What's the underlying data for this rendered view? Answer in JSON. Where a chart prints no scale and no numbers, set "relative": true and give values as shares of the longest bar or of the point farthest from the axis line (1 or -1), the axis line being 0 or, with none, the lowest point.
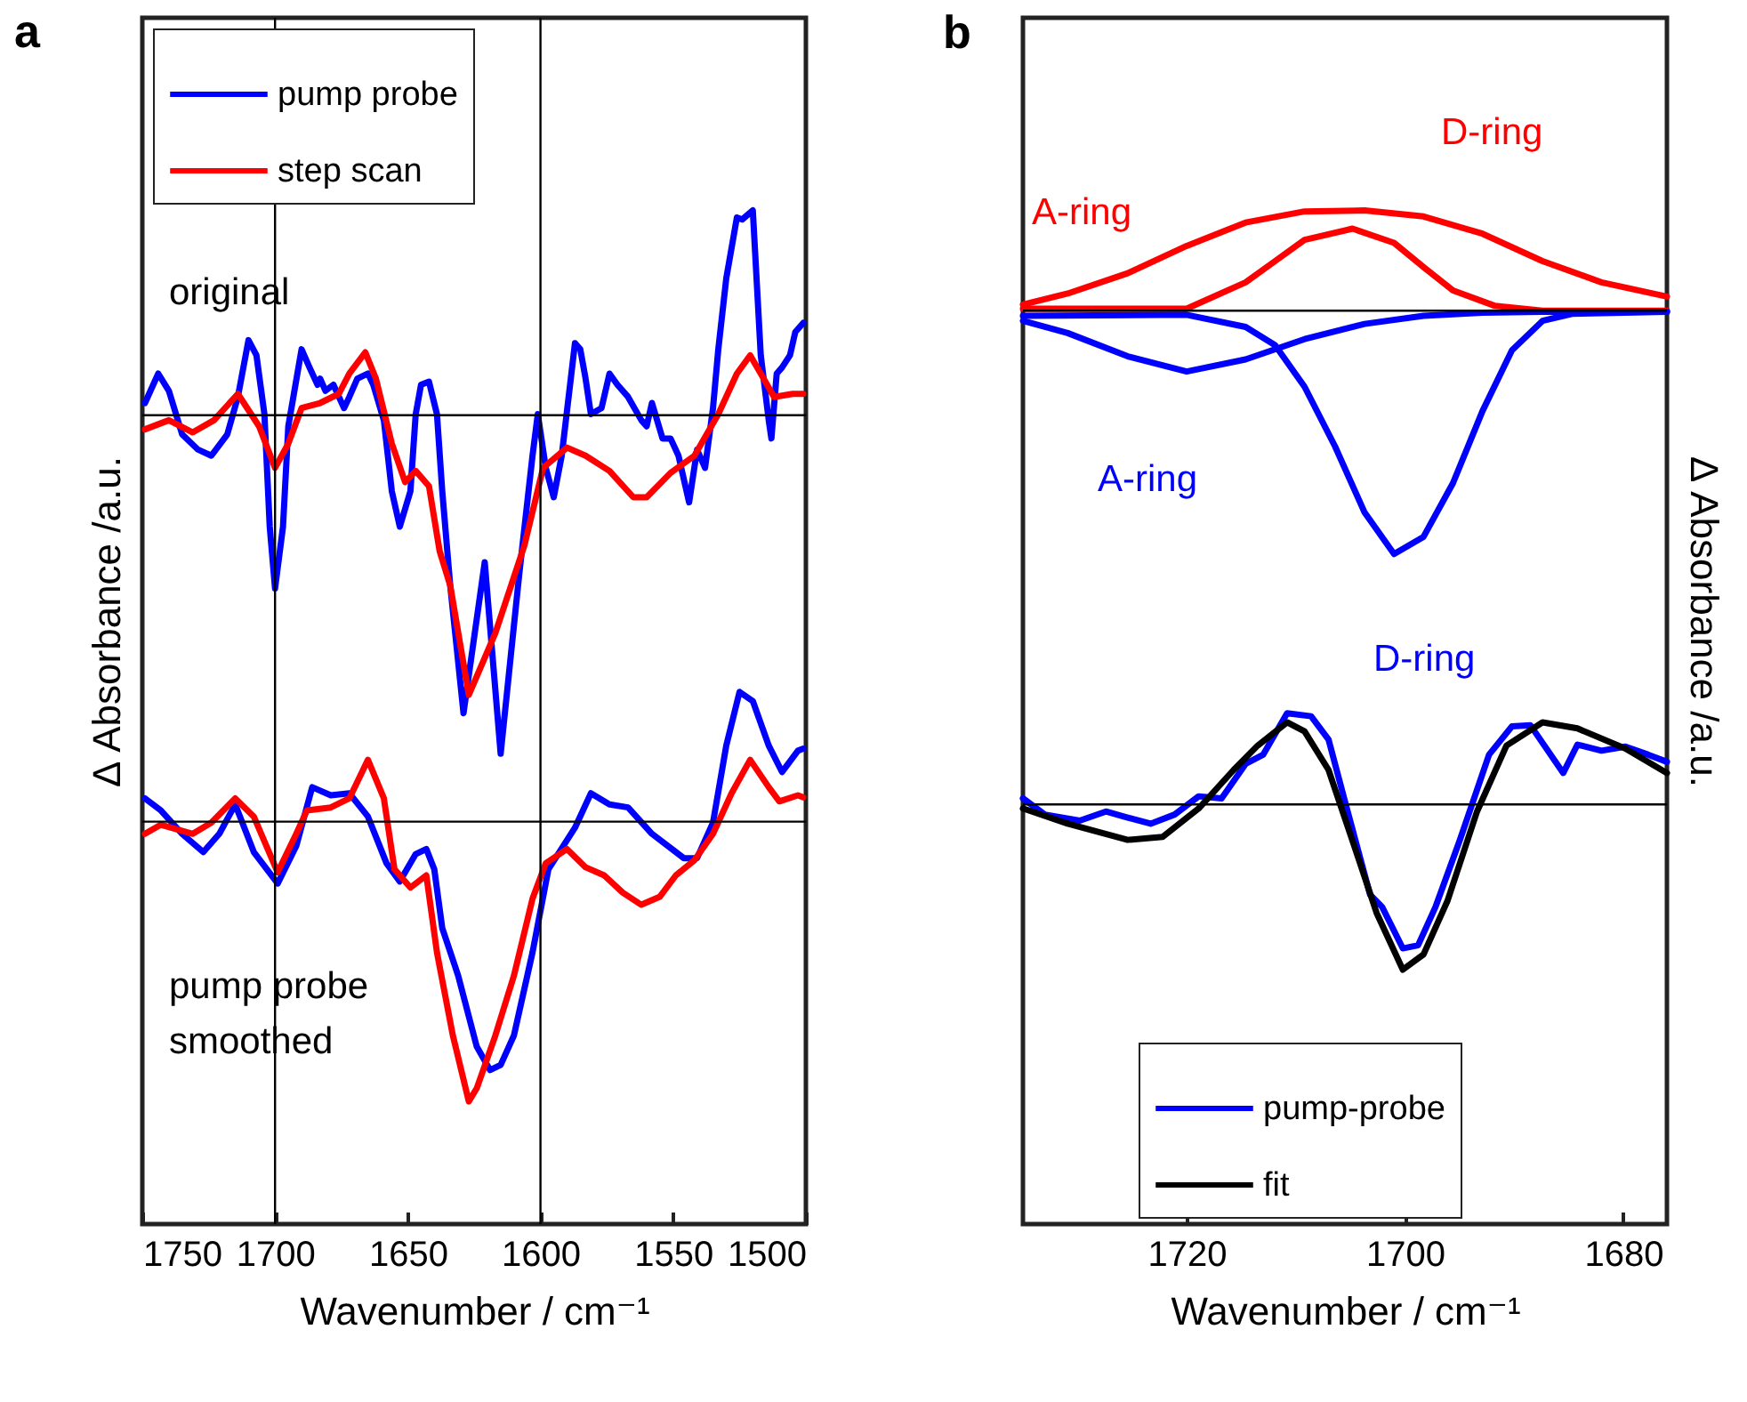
{
  "chart_data": [
    {
      "type": "line",
      "title": "a",
      "xlabel": "Wavenumber / cm⁻¹",
      "ylabel": "Δ Absorbance /a.u.",
      "relative": true,
      "xlim": [
        1750,
        1500
      ],
      "xticks": [
        1750,
        1700,
        1650,
        1600,
        1550,
        1500
      ],
      "tick_labels": "x",
      "legend": "top left",
      "ref_lines": [
        {
          "axis": "x",
          "value": 1700
        },
        {
          "axis": "x",
          "value": 1600
        },
        {
          "axis": "y",
          "value": 0.798
        },
        {
          "axis": "y",
          "value": 0.397
        }
      ],
      "annotations": [
        "original",
        "pump probe\nsmoothed"
      ],
      "series": [
        {
          "name": "pump probe",
          "color": "#0000ff",
          "x": [
            1749,
            1744,
            1740,
            1738,
            1735,
            1729,
            1724,
            1718,
            1714,
            1710,
            1707,
            1704,
            1702,
            1700,
            1697,
            1695,
            1690,
            1687,
            1684,
            1683,
            1681,
            1678,
            1674,
            1672,
            1669,
            1665,
            1663,
            1659,
            1656,
            1653,
            1649,
            1647,
            1645,
            1642,
            1639,
            1637,
            1634,
            1629,
            1621,
            1615,
            1608,
            1603,
            1601,
            1598,
            1595,
            1592,
            1587,
            1585,
            1583,
            1581,
            1577,
            1574,
            1571,
            1567,
            1562,
            1560,
            1558,
            1554,
            1551,
            1548,
            1544,
            1541,
            1538,
            1535,
            1533,
            1530,
            1526,
            1524,
            1520,
            1517,
            1514,
            1513,
            1511,
            1509,
            1506,
            1504,
            1501
          ],
          "values": [
            0.81,
            0.839,
            0.822,
            0.805,
            0.779,
            0.764,
            0.758,
            0.779,
            0.816,
            0.872,
            0.857,
            0.799,
            0.688,
            0.627,
            0.688,
            0.787,
            0.863,
            0.845,
            0.828,
            0.834,
            0.822,
            0.828,
            0.805,
            0.816,
            0.834,
            0.839,
            0.828,
            0.793,
            0.723,
            0.688,
            0.723,
            0.799,
            0.828,
            0.831,
            0.799,
            0.723,
            0.63,
            0.504,
            0.653,
            0.464,
            0.641,
            0.758,
            0.799,
            0.746,
            0.717,
            0.758,
            0.869,
            0.863,
            0.834,
            0.799,
            0.805,
            0.839,
            0.828,
            0.816,
            0.793,
            0.787,
            0.81,
            0.775,
            0.775,
            0.758,
            0.712,
            0.764,
            0.746,
            0.805,
            0.863,
            0.933,
            0.993,
            0.991,
            1.0,
            0.857,
            0.793,
            0.775,
            0.839,
            0.845,
            0.857,
            0.88,
            0.889
          ]
        },
        {
          "name": "step scan",
          "color": "#ff0000",
          "x": [
            1749,
            1740,
            1731,
            1723,
            1714,
            1706,
            1700,
            1695,
            1690,
            1683,
            1676,
            1672,
            1666,
            1662,
            1656,
            1651,
            1647,
            1642,
            1638,
            1634,
            1627,
            1617,
            1606,
            1599,
            1590,
            1583,
            1574,
            1565,
            1560,
            1551,
            1542,
            1533,
            1526,
            1521,
            1517,
            1512,
            1505,
            1501
          ],
          "values": [
            0.784,
            0.793,
            0.781,
            0.793,
            0.819,
            0.787,
            0.746,
            0.77,
            0.805,
            0.81,
            0.819,
            0.839,
            0.86,
            0.834,
            0.77,
            0.732,
            0.743,
            0.728,
            0.664,
            0.63,
            0.522,
            0.583,
            0.67,
            0.746,
            0.766,
            0.758,
            0.743,
            0.717,
            0.717,
            0.741,
            0.758,
            0.799,
            0.839,
            0.857,
            0.839,
            0.816,
            0.819,
            0.819
          ]
        },
        {
          "color": "#0000ff",
          "x": [
            1749,
            1743,
            1735,
            1727,
            1721,
            1715,
            1708,
            1699,
            1692,
            1686,
            1679,
            1672,
            1665,
            1658,
            1653,
            1647,
            1643,
            1640,
            1637,
            1631,
            1624,
            1619,
            1615,
            1610,
            1603,
            1597,
            1587,
            1581,
            1574,
            1567,
            1558,
            1546,
            1541,
            1535,
            1530,
            1525,
            1520,
            1514,
            1509,
            1503,
            1501
          ],
          "values": [
            0.42,
            0.408,
            0.385,
            0.367,
            0.385,
            0.414,
            0.367,
            0.336,
            0.373,
            0.431,
            0.423,
            0.425,
            0.402,
            0.356,
            0.338,
            0.365,
            0.37,
            0.35,
            0.292,
            0.245,
            0.175,
            0.152,
            0.157,
            0.186,
            0.268,
            0.35,
            0.391,
            0.425,
            0.414,
            0.411,
            0.385,
            0.361,
            0.361,
            0.396,
            0.472,
            0.525,
            0.516,
            0.472,
            0.446,
            0.467,
            0.469
          ]
        },
        {
          "color": "#ff0000",
          "x": [
            1749,
            1743,
            1731,
            1724,
            1715,
            1708,
            1699,
            1692,
            1688,
            1679,
            1672,
            1665,
            1659,
            1655,
            1649,
            1643,
            1639,
            1633,
            1627,
            1624,
            1617,
            1610,
            1603,
            1598,
            1590,
            1583,
            1576,
            1569,
            1562,
            1555,
            1549,
            1542,
            1535,
            1528,
            1521,
            1514,
            1510,
            1503,
            1501
          ],
          "values": [
            0.385,
            0.394,
            0.385,
            0.396,
            0.42,
            0.402,
            0.347,
            0.385,
            0.408,
            0.411,
            0.42,
            0.458,
            0.42,
            0.35,
            0.332,
            0.344,
            0.268,
            0.186,
            0.121,
            0.134,
            0.186,
            0.245,
            0.321,
            0.356,
            0.37,
            0.352,
            0.344,
            0.327,
            0.315,
            0.323,
            0.344,
            0.359,
            0.385,
            0.425,
            0.458,
            0.431,
            0.417,
            0.423,
            0.421
          ]
        }
      ]
    },
    {
      "type": "line",
      "title": "b",
      "xlabel": "Wavenumber / cm⁻¹",
      "y2label": "Δ Absorbance /a.u.",
      "relative": true,
      "xlim": [
        1735,
        1676
      ],
      "xticks": [
        1720,
        1700,
        1680
      ],
      "tick_labels": "x",
      "legend": "bottom",
      "ref_lines": [
        {
          "axis": "y",
          "value": 0.901
        },
        {
          "axis": "y",
          "value": 0.414
        }
      ],
      "annotations": [
        "A-ring",
        "D-ring",
        "A-ring",
        "D-ring"
      ],
      "series": [
        {
          "color": "#ff0000",
          "x": [
            1735.0,
            1730.9,
            1725.4,
            1720.0,
            1714.6,
            1709.2,
            1703.7,
            1698.3,
            1692.9,
            1687.4,
            1682.0,
            1676.0
          ],
          "values": [
            0.907,
            0.918,
            0.938,
            0.965,
            0.988,
            0.999,
            1.0,
            0.994,
            0.977,
            0.95,
            0.929,
            0.915
          ]
        },
        {
          "color": "#ff0000",
          "x": [
            1735.0,
            1725.4,
            1720.0,
            1714.6,
            1711.9,
            1709.2,
            1704.8,
            1701.0,
            1698.3,
            1695.6,
            1691.8,
            1687.4,
            1676.0
          ],
          "values": [
            0.903,
            0.903,
            0.903,
            0.929,
            0.95,
            0.971,
            0.982,
            0.968,
            0.944,
            0.921,
            0.906,
            0.901,
            0.901
          ]
        },
        {
          "color": "#0000ff",
          "x": [
            1735.0,
            1730.9,
            1725.4,
            1720.0,
            1714.6,
            1709.2,
            1703.7,
            1698.3,
            1692.9,
            1687.4,
            1676.0
          ],
          "values": [
            0.891,
            0.879,
            0.856,
            0.841,
            0.853,
            0.873,
            0.888,
            0.896,
            0.899,
            0.9,
            0.9
          ]
        },
        {
          "color": "#0000ff",
          "x": [
            1735.0,
            1720.0,
            1714.6,
            1711.9,
            1709.2,
            1706.4,
            1703.7,
            1701.0,
            1698.3,
            1695.6,
            1692.9,
            1690.2,
            1687.4,
            1684.7,
            1676.0
          ],
          "values": [
            0.896,
            0.897,
            0.885,
            0.867,
            0.826,
            0.767,
            0.702,
            0.661,
            0.678,
            0.731,
            0.802,
            0.862,
            0.891,
            0.898,
            0.9
          ]
        },
        {
          "name": "pump-probe",
          "color": "#0000ff",
          "x": [
            1735.0,
            1733.0,
            1729.8,
            1727.4,
            1725.4,
            1723.3,
            1721.1,
            1718.9,
            1716.8,
            1714.6,
            1713.0,
            1710.8,
            1708.6,
            1707.0,
            1705.4,
            1703.2,
            1702.1,
            1700.2,
            1698.8,
            1697.2,
            1695.0,
            1692.3,
            1690.2,
            1688.5,
            1685.5,
            1684.2,
            1682.0,
            1679.8,
            1677.7,
            1676.0
          ],
          "values": [
            0.42,
            0.404,
            0.398,
            0.407,
            0.401,
            0.395,
            0.404,
            0.422,
            0.42,
            0.454,
            0.463,
            0.504,
            0.501,
            0.478,
            0.413,
            0.325,
            0.313,
            0.272,
            0.275,
            0.313,
            0.378,
            0.463,
            0.491,
            0.492,
            0.445,
            0.473,
            0.467,
            0.471,
            0.463,
            0.456
          ]
        },
        {
          "name": "fit",
          "color": "#000000",
          "x": [
            1735.0,
            1730.9,
            1725.4,
            1722.2,
            1718.9,
            1715.7,
            1713.5,
            1710.8,
            1709.2,
            1707.0,
            1704.8,
            1702.6,
            1700.2,
            1698.3,
            1696.1,
            1693.4,
            1690.7,
            1687.4,
            1684.2,
            1679.8,
            1676.0
          ],
          "values": [
            0.41,
            0.395,
            0.379,
            0.382,
            0.41,
            0.448,
            0.472,
            0.495,
            0.486,
            0.448,
            0.378,
            0.307,
            0.251,
            0.266,
            0.319,
            0.407,
            0.472,
            0.495,
            0.489,
            0.469,
            0.445
          ]
        }
      ]
    }
  ]
}
